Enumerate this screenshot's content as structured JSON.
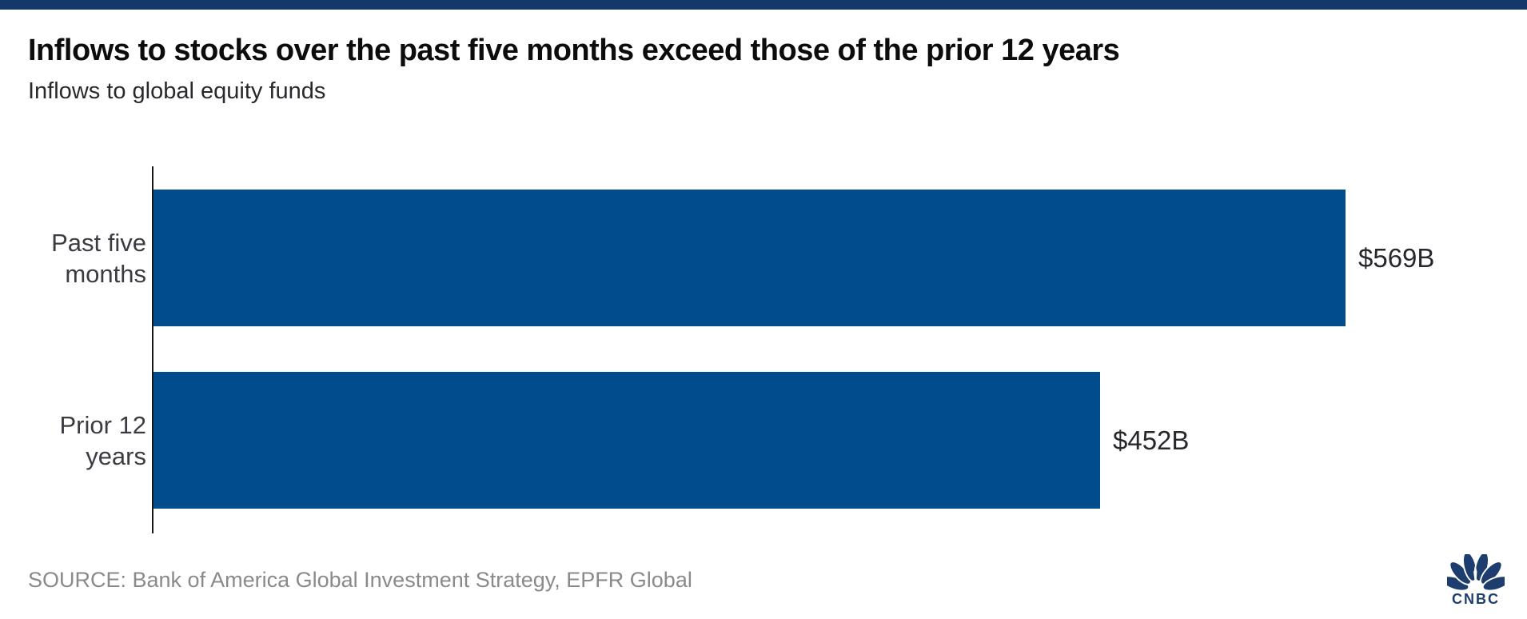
{
  "page": {
    "accent_bar_color": "#14386B",
    "background": "#ffffff"
  },
  "chart_data": {
    "type": "bar",
    "orientation": "horizontal",
    "title": "Inflows to stocks over the past five months exceed those of the prior 12 years",
    "subtitle": "Inflows to global equity funds",
    "categories": [
      "Past five months",
      "Prior 12 years"
    ],
    "category_display_lines": [
      [
        "Past five",
        "months"
      ],
      [
        "Prior 12",
        "years"
      ]
    ],
    "values": [
      569,
      452
    ],
    "value_labels": [
      "$569B",
      "$452B"
    ],
    "xlim": [
      0,
      569
    ],
    "grid": false,
    "legend": false,
    "bar_color": "#004C8C",
    "axis_color": "#1a1a1a",
    "label_color": "#3a3c42",
    "value_color": "#26282c"
  },
  "footer": {
    "source": "SOURCE: Bank of America Global Investment Strategy, EPFR Global",
    "source_color": "#8A8A8A",
    "logo_text": "CNBC",
    "logo_color": "#1C3D6E"
  }
}
